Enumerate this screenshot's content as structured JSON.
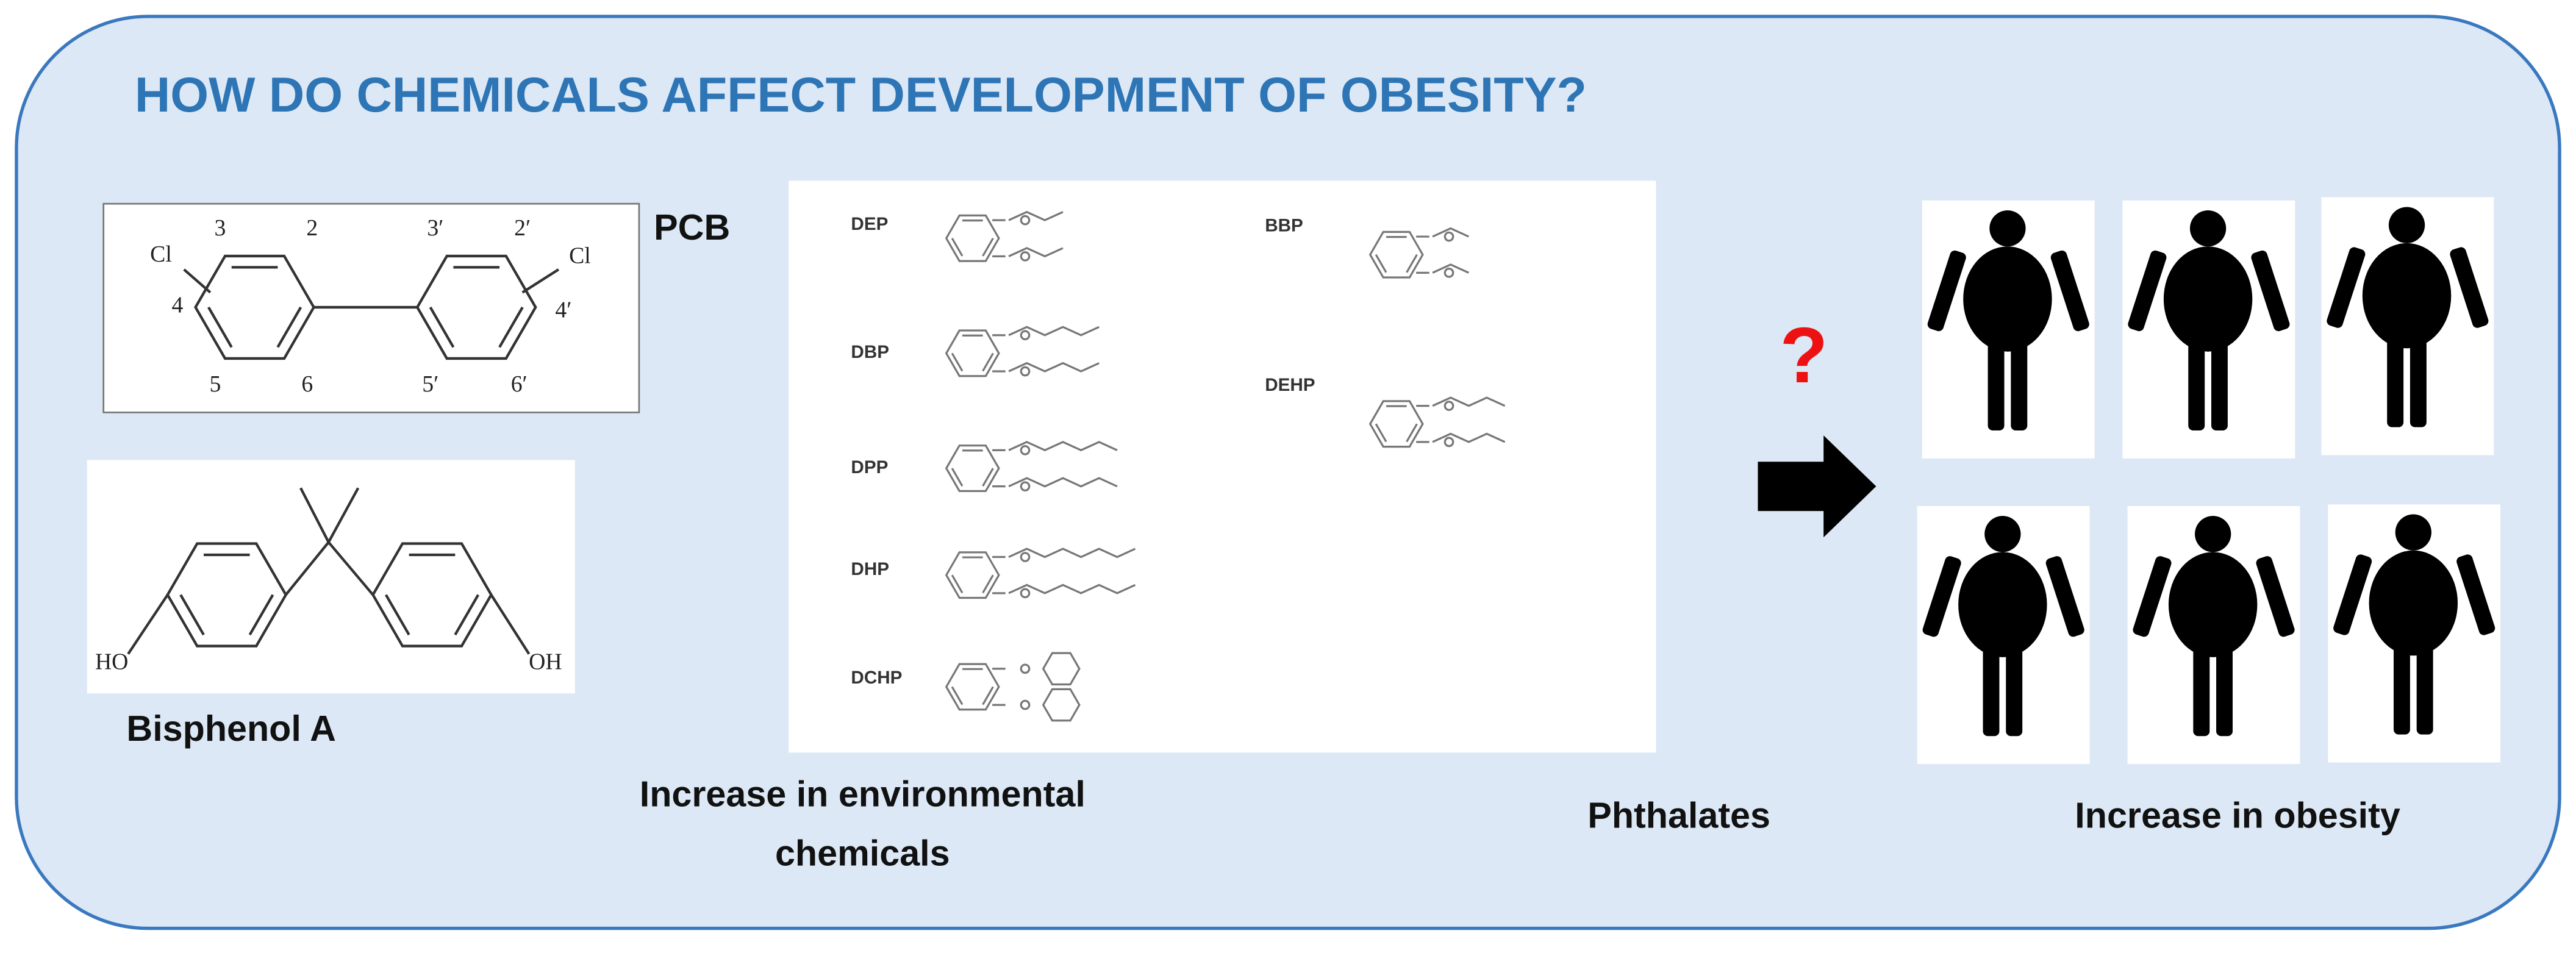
{
  "title": "HOW DO CHEMICALS AFFECT DEVELOPMENT OF OBESITY?",
  "pcb": {
    "label": "PCB",
    "atoms": [
      "Cl",
      "3",
      "2",
      "3′",
      "2′",
      "Cl",
      "4",
      "4′",
      "5",
      "6",
      "5′",
      "6′"
    ]
  },
  "bisphenol": {
    "label": "Bisphenol A",
    "atoms": [
      "HO",
      "OH"
    ]
  },
  "phthalates": {
    "label": "Phthalates",
    "compounds": [
      "DEP",
      "DBP",
      "DPP",
      "DHP",
      "DCHP",
      "BBP",
      "DEHP"
    ]
  },
  "chemicals_label": {
    "lines": [
      "Increase in environmental",
      "chemicals"
    ]
  },
  "question": "?",
  "obesity_label": "Increase in obesity"
}
